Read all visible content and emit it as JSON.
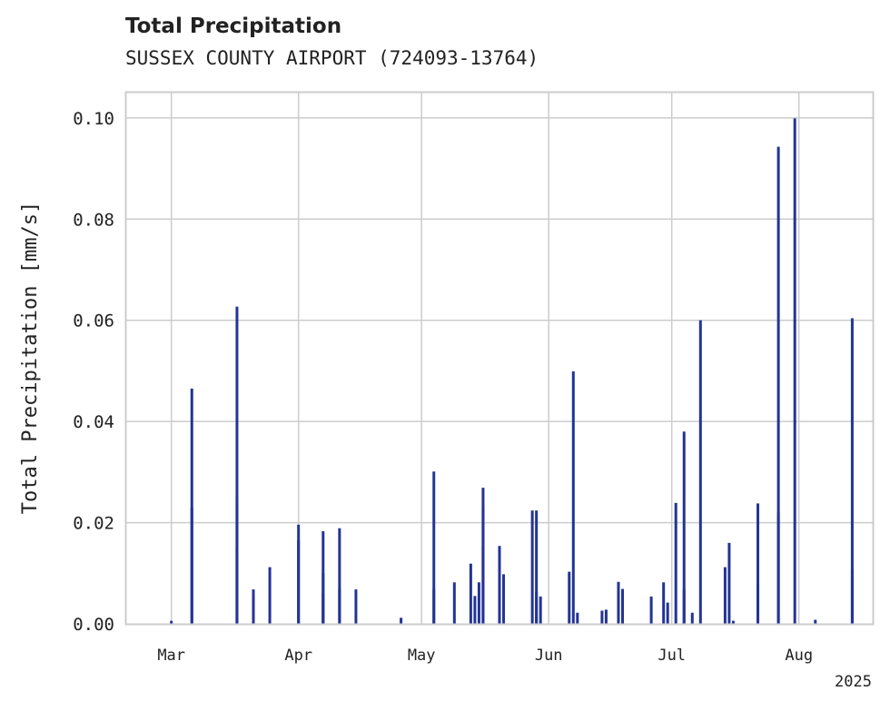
{
  "chart_data": {
    "type": "bar",
    "title": "Total Precipitation",
    "subtitle": "SUSSEX COUNTY AIRPORT (724093-13764)",
    "xlabel": "",
    "ylabel": "Total Precipitation [mm/s]",
    "ylim": [
      0,
      0.105
    ],
    "xlim": [
      "2025-02-18",
      "2025-08-19"
    ],
    "yticks": [
      0,
      0.02,
      0.04,
      0.06,
      0.08,
      0.1
    ],
    "ytick_labels": [
      "0.00",
      "0.02",
      "0.04",
      "0.06",
      "0.08",
      "0.10"
    ],
    "xticks": [
      "2025-03-01",
      "2025-04-01",
      "2025-05-01",
      "2025-06-01",
      "2025-07-01",
      "2025-08-01"
    ],
    "xtick_labels": [
      "Mar",
      "Apr",
      "May",
      "Jun",
      "Jul",
      "Aug"
    ],
    "x_offset_label": "2025",
    "grid": true,
    "color": "#233494",
    "x": [
      "2025-02-29",
      "2025-03-06",
      "2025-03-06",
      "2025-03-17",
      "2025-03-17",
      "2025-03-17",
      "2025-03-17",
      "2025-03-21",
      "2025-03-21",
      "2025-03-25",
      "2025-04-01",
      "2025-04-01",
      "2025-04-07",
      "2025-04-07",
      "2025-04-07",
      "2025-04-11",
      "2025-04-11",
      "2025-04-15",
      "2025-04-26",
      "2025-05-04",
      "2025-05-04",
      "2025-05-09",
      "2025-05-13",
      "2025-05-14",
      "2025-05-15",
      "2025-05-16",
      "2025-05-16",
      "2025-05-16",
      "2025-05-20",
      "2025-05-21",
      "2025-05-28",
      "2025-05-29",
      "2025-05-29",
      "2025-05-30",
      "2025-06-06",
      "2025-06-07",
      "2025-06-08",
      "2025-06-14",
      "2025-06-15",
      "2025-06-18",
      "2025-06-19",
      "2025-06-26",
      "2025-06-29",
      "2025-06-30",
      "2025-07-02",
      "2025-07-04",
      "2025-07-04",
      "2025-07-06",
      "2025-07-08",
      "2025-07-14",
      "2025-07-15",
      "2025-07-16",
      "2025-07-22",
      "2025-07-22",
      "2025-07-27",
      "2025-07-27",
      "2025-07-31",
      "2025-08-05",
      "2025-08-14",
      "2025-08-14"
    ],
    "values": [
      0.0006,
      0.0465,
      0.023,
      0.0627,
      0.025,
      0.015,
      0.0005,
      0.0055,
      0.0068,
      0.0112,
      0.0196,
      0.0165,
      0.0183,
      0.01,
      0.006,
      0.0189,
      0.007,
      0.0068,
      0.0012,
      0.0301,
      0.0068,
      0.0082,
      0.0119,
      0.0055,
      0.0082,
      0.0269,
      0.0232,
      0.0155,
      0.0154,
      0.0098,
      0.0224,
      0.0063,
      0.0224,
      0.0054,
      0.0103,
      0.0499,
      0.0022,
      0.0026,
      0.0028,
      0.0083,
      0.0069,
      0.0054,
      0.0082,
      0.0042,
      0.0239,
      0.0068,
      0.038,
      0.0022,
      0.06,
      0.0112,
      0.016,
      0.0006,
      0.0238,
      0.0078,
      0.0943,
      0.022,
      0.0999,
      0.0008,
      0.0604,
      0.0108
    ]
  }
}
